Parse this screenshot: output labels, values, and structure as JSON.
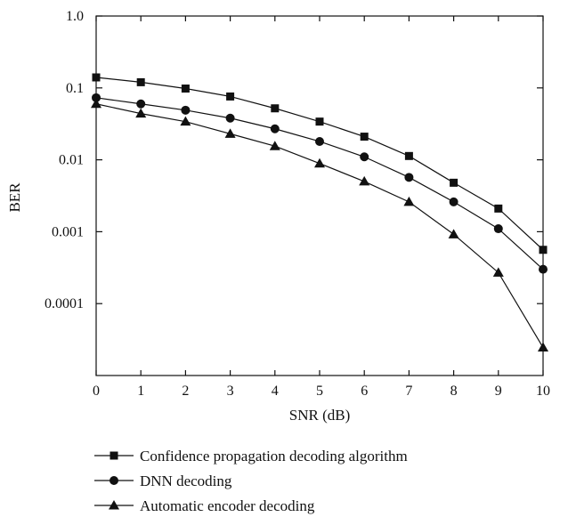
{
  "chart_data": {
    "type": "line",
    "title": "",
    "xlabel": "SNR (dB)",
    "ylabel": "BER",
    "xlim": [
      0,
      10
    ],
    "ylim": [
      1e-05,
      1.0
    ],
    "yscale": "log",
    "grid": false,
    "legend_position": "below",
    "x_ticks": [
      0,
      1,
      2,
      3,
      4,
      5,
      6,
      7,
      8,
      9,
      10
    ],
    "y_ticks": [
      {
        "value": 1.0,
        "label": "1.0"
      },
      {
        "value": 0.1,
        "label": "0.1"
      },
      {
        "value": 0.01,
        "label": "0.01"
      },
      {
        "value": 0.001,
        "label": "0.001"
      },
      {
        "value": 0.0001,
        "label": "0.0001"
      }
    ],
    "x": [
      0,
      1,
      2,
      3,
      4,
      5,
      6,
      7,
      8,
      9,
      10
    ],
    "series": [
      {
        "name": "Confidence propagation decoding algorithm",
        "marker": "square",
        "values": [
          0.14,
          0.12,
          0.098,
          0.076,
          0.052,
          0.034,
          0.021,
          0.0113,
          0.0048,
          0.0021,
          0.00056
        ]
      },
      {
        "name": "DNN decoding",
        "marker": "circle",
        "values": [
          0.073,
          0.06,
          0.049,
          0.038,
          0.027,
          0.018,
          0.011,
          0.0057,
          0.0026,
          0.0011,
          0.0003
        ]
      },
      {
        "name": "Automatic encoder decoding",
        "marker": "triangle",
        "values": [
          0.06,
          0.044,
          0.034,
          0.023,
          0.0155,
          0.0089,
          0.005,
          0.0026,
          0.00092,
          0.00027,
          2.45e-05
        ]
      }
    ]
  }
}
